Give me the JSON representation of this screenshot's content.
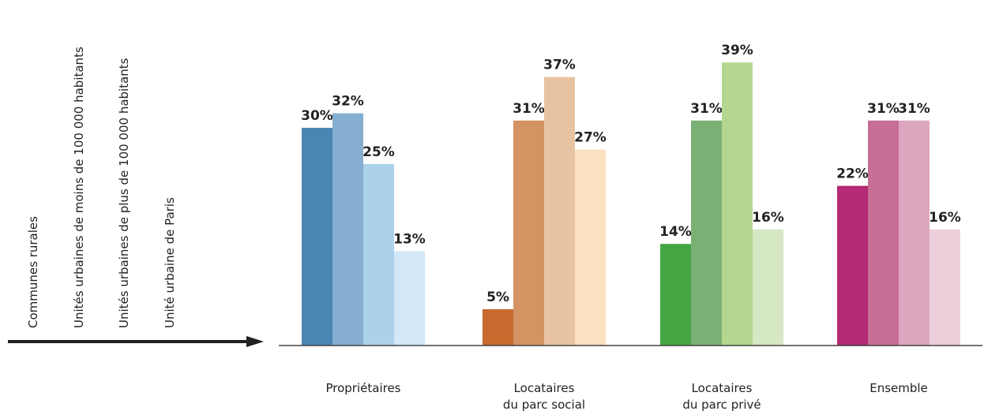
{
  "chart_data": {
    "type": "bar",
    "ylim": [
      0,
      42
    ],
    "legend_placement": "left, rotated vertical labels with arrow",
    "legend": [
      "Communes rurales",
      "Unités urbaines de moins de 100 000 habitants",
      "Unités urbaines de plus de 100 000 habitants",
      "Unité urbaine de Paris"
    ],
    "groups": [
      {
        "label_lines": [
          "Propriétaires"
        ],
        "values": [
          30,
          32,
          25,
          13
        ],
        "labels": [
          "30%",
          "32%",
          "25%",
          "13%"
        ],
        "colors": [
          "#4a86b2",
          "#86aed0",
          "#acd1eb",
          "#d2e7f7"
        ]
      },
      {
        "label_lines": [
          "Locataires",
          "du parc social"
        ],
        "values": [
          5,
          31,
          37,
          27
        ],
        "labels": [
          "5%",
          "31%",
          "37%",
          "27%"
        ],
        "colors": [
          "#c76a2e",
          "#d49362",
          "#e8c3a1",
          "#fbe1c0"
        ]
      },
      {
        "label_lines": [
          "Locataires",
          "du parc privé"
        ],
        "values": [
          14,
          31,
          39,
          16
        ],
        "labels": [
          "14%",
          "31%",
          "39%",
          "16%"
        ],
        "colors": [
          "#44a643",
          "#7bb074",
          "#b3d78f",
          "#d6e8c3"
        ]
      },
      {
        "label_lines": [
          "Ensemble"
        ],
        "values": [
          22,
          31,
          31,
          16
        ],
        "labels": [
          "22%",
          "31%",
          "31%",
          "16%"
        ],
        "colors": [
          "#b42a74",
          "#c66e96",
          "#dda6bf",
          "#edcfdc"
        ]
      }
    ]
  }
}
